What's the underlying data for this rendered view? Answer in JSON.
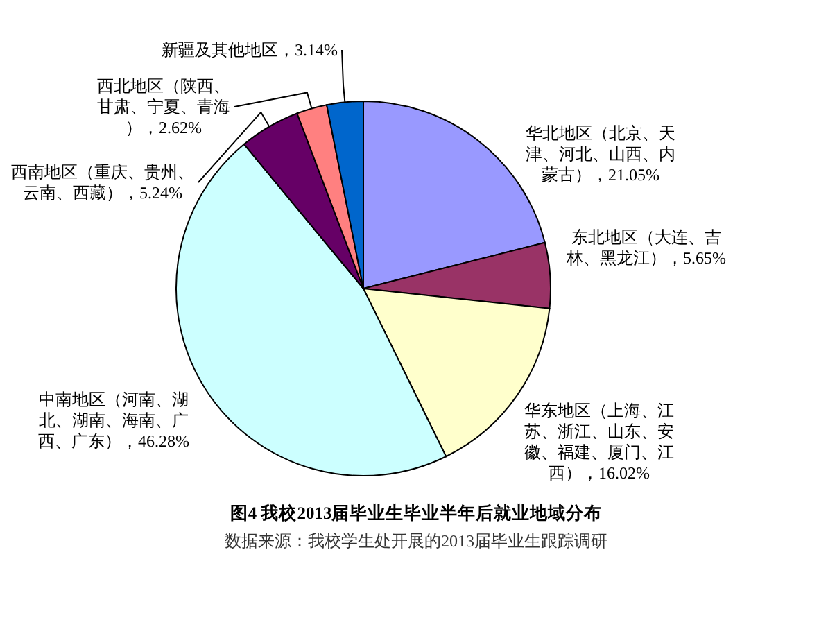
{
  "chart_data": {
    "type": "pie",
    "title": "图4 我校2013届毕业生毕业半年后就业地域分布",
    "categories": [
      "华北地区（北京、天津、河北、山西、内蒙古）",
      "东北地区（大连、吉林、黑龙江）",
      "华东地区（上海、江苏、浙江、山东、安徽、福建、厦门、江西）",
      "中南地区（河南、湖北、湖南、海南、广西、广东）",
      "西南地区（重庆、贵州、云南、西藏）",
      "西北地区（陕西、甘肃、宁夏、青海）",
      "新疆及其他地区"
    ],
    "values": [
      21.05,
      5.65,
      16.02,
      46.28,
      5.24,
      2.62,
      3.14
    ],
    "colors": [
      "#9999ff",
      "#993366",
      "#ffffcc",
      "#ccffff",
      "#660066",
      "#ff8080",
      "#0066cc"
    ],
    "value_labels": [
      "21.05%",
      "5.65%",
      "16.02%",
      "46.28%",
      "5.24%",
      "2.62%",
      "3.14%"
    ],
    "annotations": [
      "数据来源：我校学生处开展的2013届毕业生跟踪调研"
    ]
  }
}
